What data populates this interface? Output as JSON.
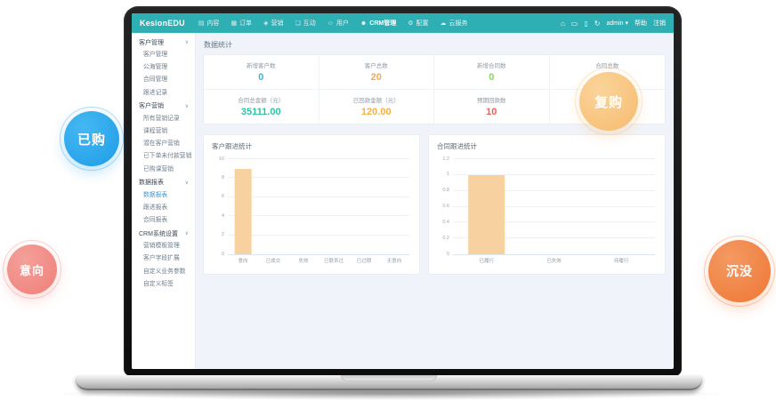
{
  "navbar": {
    "brand": "KesionEDU",
    "menu": [
      {
        "name": "content",
        "icon": "content-icon",
        "glyph": "▤",
        "label": "内容",
        "active": false
      },
      {
        "name": "orders",
        "icon": "order-icon",
        "glyph": "▦",
        "label": "订单",
        "active": false
      },
      {
        "name": "marketing",
        "icon": "tag-icon",
        "glyph": "◈",
        "label": "营销",
        "active": false
      },
      {
        "name": "interaction",
        "icon": "chat-icon",
        "glyph": "❏",
        "label": "互动",
        "active": false
      },
      {
        "name": "users",
        "icon": "user-icon",
        "glyph": "☺",
        "label": "用户",
        "active": false
      },
      {
        "name": "crm",
        "icon": "crm-user-icon",
        "glyph": "☻",
        "label": "CRM管理",
        "active": true
      },
      {
        "name": "config",
        "icon": "gear-icon",
        "glyph": "⚙",
        "label": "配置",
        "active": false
      },
      {
        "name": "cloud",
        "icon": "cloud-icon",
        "glyph": "☁",
        "label": "云服务",
        "active": false
      }
    ],
    "right_icons": [
      {
        "name": "home-icon",
        "glyph": "⌂"
      },
      {
        "name": "monitor-icon",
        "glyph": "▭"
      },
      {
        "name": "mobile-icon",
        "glyph": "▯"
      },
      {
        "name": "refresh-icon",
        "glyph": "↻"
      }
    ],
    "user": {
      "name": "admin",
      "caret": "▾"
    },
    "links": [
      "帮助",
      "注销"
    ]
  },
  "sidebar": {
    "sections": [
      {
        "header": "客户管理",
        "chevron": "∨",
        "items": [
          "客户管理",
          "公海管理",
          "合同管理",
          "跟进记录"
        ]
      },
      {
        "header": "客户营销",
        "chevron": "∨",
        "items": [
          "所有营销记录",
          "课程营销",
          "潜在客户营销",
          "已下单未付款营销",
          "已购课营销"
        ]
      },
      {
        "header": "数据报表",
        "chevron": "∨",
        "items": [
          "数据报表",
          "跟进报表",
          "合同报表"
        ],
        "active": "数据报表"
      },
      {
        "header": "CRM系统设置",
        "chevron": "∨",
        "items": [
          "营销模板管理",
          "客户字段扩展",
          "自定义业务参数",
          "自定义标签"
        ]
      }
    ]
  },
  "main": {
    "section_title": "数据统计",
    "stats_rows": [
      [
        {
          "label": "新增客户数",
          "value": "0",
          "color": "#36b6cf"
        },
        {
          "label": "客户总数",
          "value": "20",
          "color": "#f5a84c"
        },
        {
          "label": "新增合同数",
          "value": "0",
          "color": "#8bd35c"
        },
        {
          "label": "合同总数",
          "value": "",
          "color": "#8bd35c"
        }
      ],
      [
        {
          "label": "合同总金额（元）",
          "value": "35111.00",
          "color": "#2fc2a1"
        },
        {
          "label": "已回款金额（元）",
          "value": "120.00",
          "color": "#f6b143"
        },
        {
          "label": "预期回款数",
          "value": "10",
          "color": "#f25f50"
        },
        {
          "label": "",
          "value": "",
          "color": "#999999"
        }
      ]
    ]
  },
  "chart_data": [
    {
      "type": "bar",
      "name": "customer-followup-chart",
      "title": "客户跟进统计",
      "categories": [
        "意向",
        "已成交",
        "失效",
        "已联系过",
        "已过期",
        "无意向"
      ],
      "values": [
        9,
        0,
        0,
        0,
        0,
        0
      ],
      "ylim": [
        0,
        10
      ],
      "yticks": [
        0,
        2,
        4,
        6,
        8,
        10
      ],
      "xlabel": "",
      "ylabel": "",
      "grid": true,
      "legend": false,
      "bar_color": "#f8d1a0"
    },
    {
      "type": "bar",
      "name": "contract-followup-chart",
      "title": "合同跟进统计",
      "categories": [
        "已履行",
        "已失效",
        "待履行"
      ],
      "values": [
        1,
        0,
        0
      ],
      "ylim": [
        0,
        1.2
      ],
      "yticks": [
        0,
        0.2,
        0.4,
        0.6,
        0.8,
        1,
        1.2
      ],
      "xlabel": "",
      "ylabel": "",
      "grid": true,
      "legend": false,
      "bar_color": "#f8d1a0"
    }
  ],
  "bubbles": [
    {
      "name": "bubble-purchased",
      "label": "已购",
      "color_start": "#45b8f3",
      "color_end": "#1e9ce6",
      "x": 71,
      "y": 124,
      "size": 62,
      "font": 15
    },
    {
      "name": "bubble-intent",
      "label": "意向",
      "color_start": "#f4a09a",
      "color_end": "#ee7f78",
      "x": 7,
      "y": 274,
      "size": 56,
      "font": 13
    },
    {
      "name": "bubble-repurchase",
      "label": "复购",
      "color_start": "#fbd49b",
      "color_end": "#f6bb6e",
      "x": 650,
      "y": 80,
      "size": 66,
      "font": 15
    },
    {
      "name": "bubble-sunk",
      "label": "沉没",
      "color_start": "#f49a62",
      "color_end": "#ee7634",
      "x": 795,
      "y": 269,
      "size": 70,
      "font": 14
    }
  ]
}
